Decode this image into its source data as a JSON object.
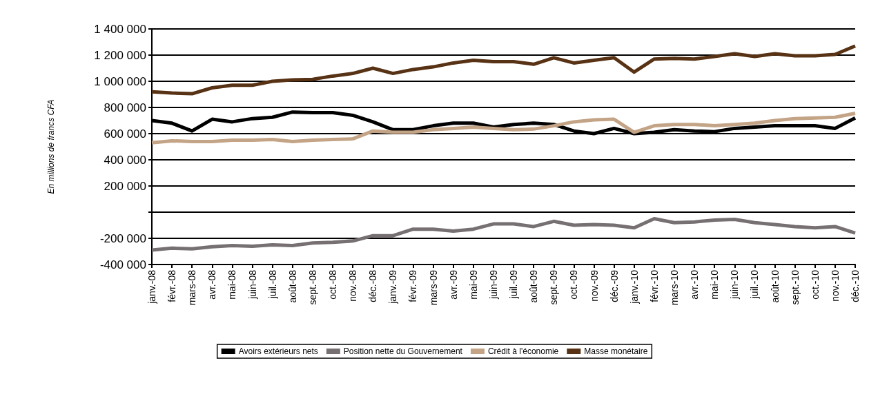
{
  "chart_data": {
    "type": "line",
    "ylabel": "En millions de francs CFA",
    "categories": [
      "janv.-08",
      "févr.-08",
      "mars-08",
      "avr.-08",
      "mai-08",
      "juin-08",
      "juil.-08",
      "août-08",
      "sept.-08",
      "oct.-08",
      "nov.-08",
      "déc.-08",
      "janv.-09",
      "févr.-09",
      "mars-09",
      "avr.-09",
      "mai-09",
      "juin-09",
      "juil.-09",
      "août-09",
      "sept.-09",
      "oct.-09",
      "nov.-09",
      "déc.-09",
      "janv.-10",
      "févr.-10",
      "mars-10",
      "avr.-10",
      "mai-10",
      "juin-10",
      "juil.-10",
      "août-10",
      "sept.-10",
      "oct.-10",
      "nov.-10",
      "déc.-10"
    ],
    "series": [
      {
        "name": "Avoirs extérieurs nets",
        "color": "#000000",
        "values": [
          700000,
          680000,
          620000,
          710000,
          690000,
          715000,
          725000,
          765000,
          760000,
          760000,
          740000,
          690000,
          630000,
          630000,
          660000,
          680000,
          680000,
          650000,
          670000,
          680000,
          670000,
          620000,
          600000,
          640000,
          600000,
          610000,
          630000,
          620000,
          615000,
          640000,
          650000,
          660000,
          660000,
          660000,
          640000,
          720000
        ]
      },
      {
        "name": "Position nette du Gouvernement",
        "color": "#777073",
        "values": [
          -290000,
          -275000,
          -280000,
          -265000,
          -255000,
          -260000,
          -250000,
          -255000,
          -235000,
          -230000,
          -220000,
          -180000,
          -180000,
          -130000,
          -130000,
          -145000,
          -130000,
          -90000,
          -90000,
          -110000,
          -70000,
          -100000,
          -95000,
          -100000,
          -120000,
          -50000,
          -80000,
          -75000,
          -60000,
          -55000,
          -80000,
          -95000,
          -110000,
          -120000,
          -110000,
          -160000
        ]
      },
      {
        "name": "Crédit à l'économie",
        "color": "#c4a486",
        "values": [
          530000,
          545000,
          540000,
          540000,
          550000,
          550000,
          555000,
          540000,
          550000,
          555000,
          560000,
          620000,
          610000,
          610000,
          630000,
          640000,
          650000,
          640000,
          630000,
          635000,
          660000,
          690000,
          705000,
          710000,
          610000,
          660000,
          670000,
          670000,
          660000,
          670000,
          680000,
          700000,
          715000,
          720000,
          725000,
          755000
        ]
      },
      {
        "name": "Masse monétaire",
        "color": "#583214",
        "values": [
          920000,
          910000,
          905000,
          950000,
          970000,
          970000,
          1000000,
          1010000,
          1015000,
          1040000,
          1060000,
          1100000,
          1060000,
          1090000,
          1110000,
          1140000,
          1160000,
          1150000,
          1150000,
          1130000,
          1180000,
          1140000,
          1160000,
          1180000,
          1070000,
          1170000,
          1175000,
          1170000,
          1190000,
          1210000,
          1190000,
          1210000,
          1195000,
          1195000,
          1205000,
          1270000
        ]
      }
    ],
    "ylim": [
      -400000,
      1400000
    ],
    "yticks": [
      -400000,
      -200000,
      {
        "value": 0,
        "label": null
      },
      200000,
      400000,
      600000,
      800000,
      1000000,
      1200000,
      1400000
    ],
    "grid": "y",
    "legend": "bottom",
    "marker": "none",
    "line_style": "solid"
  }
}
